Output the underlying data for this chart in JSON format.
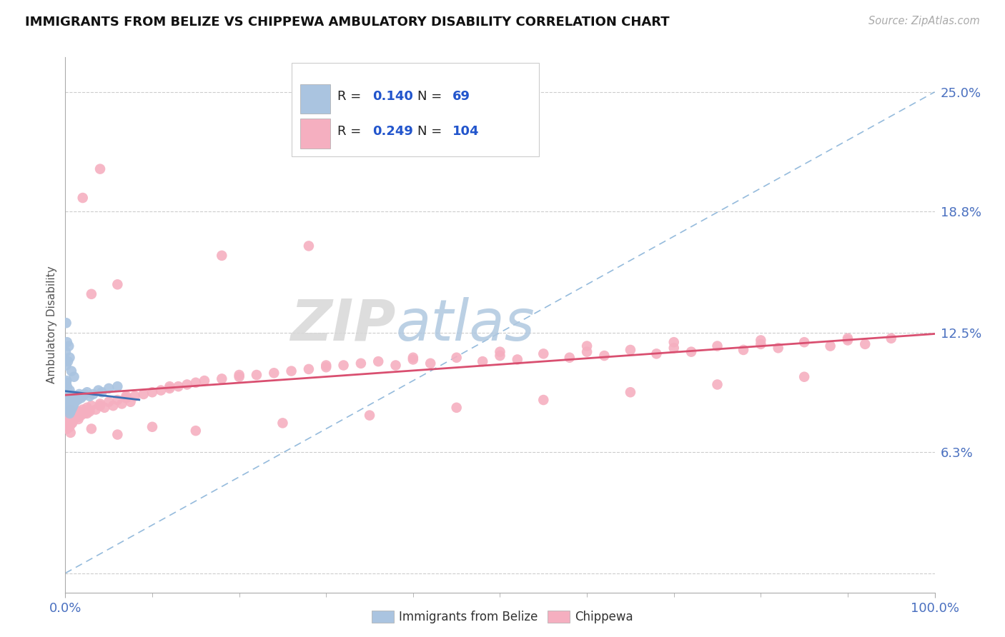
{
  "title": "IMMIGRANTS FROM BELIZE VS CHIPPEWA AMBULATORY DISABILITY CORRELATION CHART",
  "source": "Source: ZipAtlas.com",
  "ylabel": "Ambulatory Disability",
  "xlim": [
    0.0,
    1.0
  ],
  "ylim": [
    -0.01,
    0.268
  ],
  "ytick_vals": [
    0.0,
    0.063,
    0.125,
    0.188,
    0.25
  ],
  "ytick_labels": [
    "",
    "6.3%",
    "12.5%",
    "18.8%",
    "25.0%"
  ],
  "belize_color": "#aac4e0",
  "chippewa_color": "#f5afc0",
  "trend_belize_color": "#3a6fb5",
  "trend_chippewa_color": "#d94f70",
  "diagonal_color": "#7baad4",
  "tick_color": "#4a70c0",
  "watermark_color": "#d0dce8",
  "belize_R": "0.140",
  "belize_N": "69",
  "chippewa_R": "0.249",
  "chippewa_N": "104",
  "belize_points_x": [
    0.0005,
    0.0005,
    0.0008,
    0.001,
    0.001,
    0.001,
    0.001,
    0.0012,
    0.0013,
    0.0015,
    0.0015,
    0.0018,
    0.002,
    0.002,
    0.002,
    0.002,
    0.0022,
    0.0025,
    0.003,
    0.003,
    0.003,
    0.003,
    0.004,
    0.004,
    0.004,
    0.004,
    0.005,
    0.005,
    0.005,
    0.005,
    0.005,
    0.006,
    0.006,
    0.006,
    0.006,
    0.007,
    0.007,
    0.007,
    0.008,
    0.008,
    0.009,
    0.009,
    0.01,
    0.01,
    0.011,
    0.012,
    0.013,
    0.014,
    0.015,
    0.016,
    0.018,
    0.02,
    0.022,
    0.025,
    0.028,
    0.032,
    0.038,
    0.042,
    0.05,
    0.06,
    0.0005,
    0.001,
    0.001,
    0.002,
    0.003,
    0.004,
    0.005,
    0.007,
    0.01
  ],
  "belize_points_y": [
    0.092,
    0.098,
    0.093,
    0.09,
    0.094,
    0.096,
    0.099,
    0.091,
    0.093,
    0.095,
    0.1,
    0.092,
    0.088,
    0.09,
    0.093,
    0.097,
    0.089,
    0.091,
    0.086,
    0.088,
    0.09,
    0.094,
    0.085,
    0.087,
    0.09,
    0.093,
    0.083,
    0.086,
    0.089,
    0.092,
    0.095,
    0.084,
    0.087,
    0.09,
    0.093,
    0.085,
    0.088,
    0.091,
    0.086,
    0.09,
    0.087,
    0.091,
    0.088,
    0.092,
    0.089,
    0.09,
    0.092,
    0.09,
    0.091,
    0.093,
    0.091,
    0.092,
    0.093,
    0.094,
    0.092,
    0.093,
    0.095,
    0.094,
    0.096,
    0.097,
    0.115,
    0.108,
    0.13,
    0.12,
    0.11,
    0.118,
    0.112,
    0.105,
    0.102
  ],
  "chippewa_points_x": [
    0.001,
    0.002,
    0.003,
    0.004,
    0.005,
    0.006,
    0.007,
    0.008,
    0.01,
    0.012,
    0.014,
    0.016,
    0.018,
    0.02,
    0.022,
    0.025,
    0.028,
    0.03,
    0.035,
    0.04,
    0.045,
    0.05,
    0.055,
    0.06,
    0.065,
    0.07,
    0.075,
    0.08,
    0.09,
    0.1,
    0.11,
    0.12,
    0.13,
    0.14,
    0.15,
    0.16,
    0.18,
    0.2,
    0.22,
    0.24,
    0.26,
    0.28,
    0.3,
    0.32,
    0.34,
    0.36,
    0.38,
    0.4,
    0.42,
    0.45,
    0.48,
    0.5,
    0.52,
    0.55,
    0.58,
    0.6,
    0.62,
    0.65,
    0.68,
    0.7,
    0.72,
    0.75,
    0.78,
    0.8,
    0.82,
    0.85,
    0.88,
    0.9,
    0.92,
    0.95,
    0.002,
    0.004,
    0.006,
    0.008,
    0.015,
    0.025,
    0.04,
    0.07,
    0.12,
    0.2,
    0.3,
    0.4,
    0.5,
    0.6,
    0.7,
    0.8,
    0.9,
    0.03,
    0.06,
    0.1,
    0.15,
    0.25,
    0.35,
    0.45,
    0.55,
    0.65,
    0.75,
    0.85,
    0.03,
    0.06,
    0.18,
    0.28,
    0.02,
    0.04
  ],
  "chippewa_points_y": [
    0.083,
    0.079,
    0.082,
    0.08,
    0.076,
    0.085,
    0.078,
    0.082,
    0.08,
    0.083,
    0.081,
    0.084,
    0.082,
    0.085,
    0.083,
    0.086,
    0.084,
    0.087,
    0.085,
    0.088,
    0.086,
    0.089,
    0.087,
    0.09,
    0.088,
    0.091,
    0.089,
    0.092,
    0.093,
    0.094,
    0.095,
    0.096,
    0.097,
    0.098,
    0.099,
    0.1,
    0.101,
    0.102,
    0.103,
    0.104,
    0.105,
    0.106,
    0.107,
    0.108,
    0.109,
    0.11,
    0.108,
    0.111,
    0.109,
    0.112,
    0.11,
    0.113,
    0.111,
    0.114,
    0.112,
    0.115,
    0.113,
    0.116,
    0.114,
    0.117,
    0.115,
    0.118,
    0.116,
    0.119,
    0.117,
    0.12,
    0.118,
    0.121,
    0.119,
    0.122,
    0.075,
    0.077,
    0.073,
    0.078,
    0.08,
    0.083,
    0.087,
    0.092,
    0.097,
    0.103,
    0.108,
    0.112,
    0.115,
    0.118,
    0.12,
    0.121,
    0.122,
    0.075,
    0.072,
    0.076,
    0.074,
    0.078,
    0.082,
    0.086,
    0.09,
    0.094,
    0.098,
    0.102,
    0.145,
    0.15,
    0.165,
    0.17,
    0.195,
    0.21
  ]
}
